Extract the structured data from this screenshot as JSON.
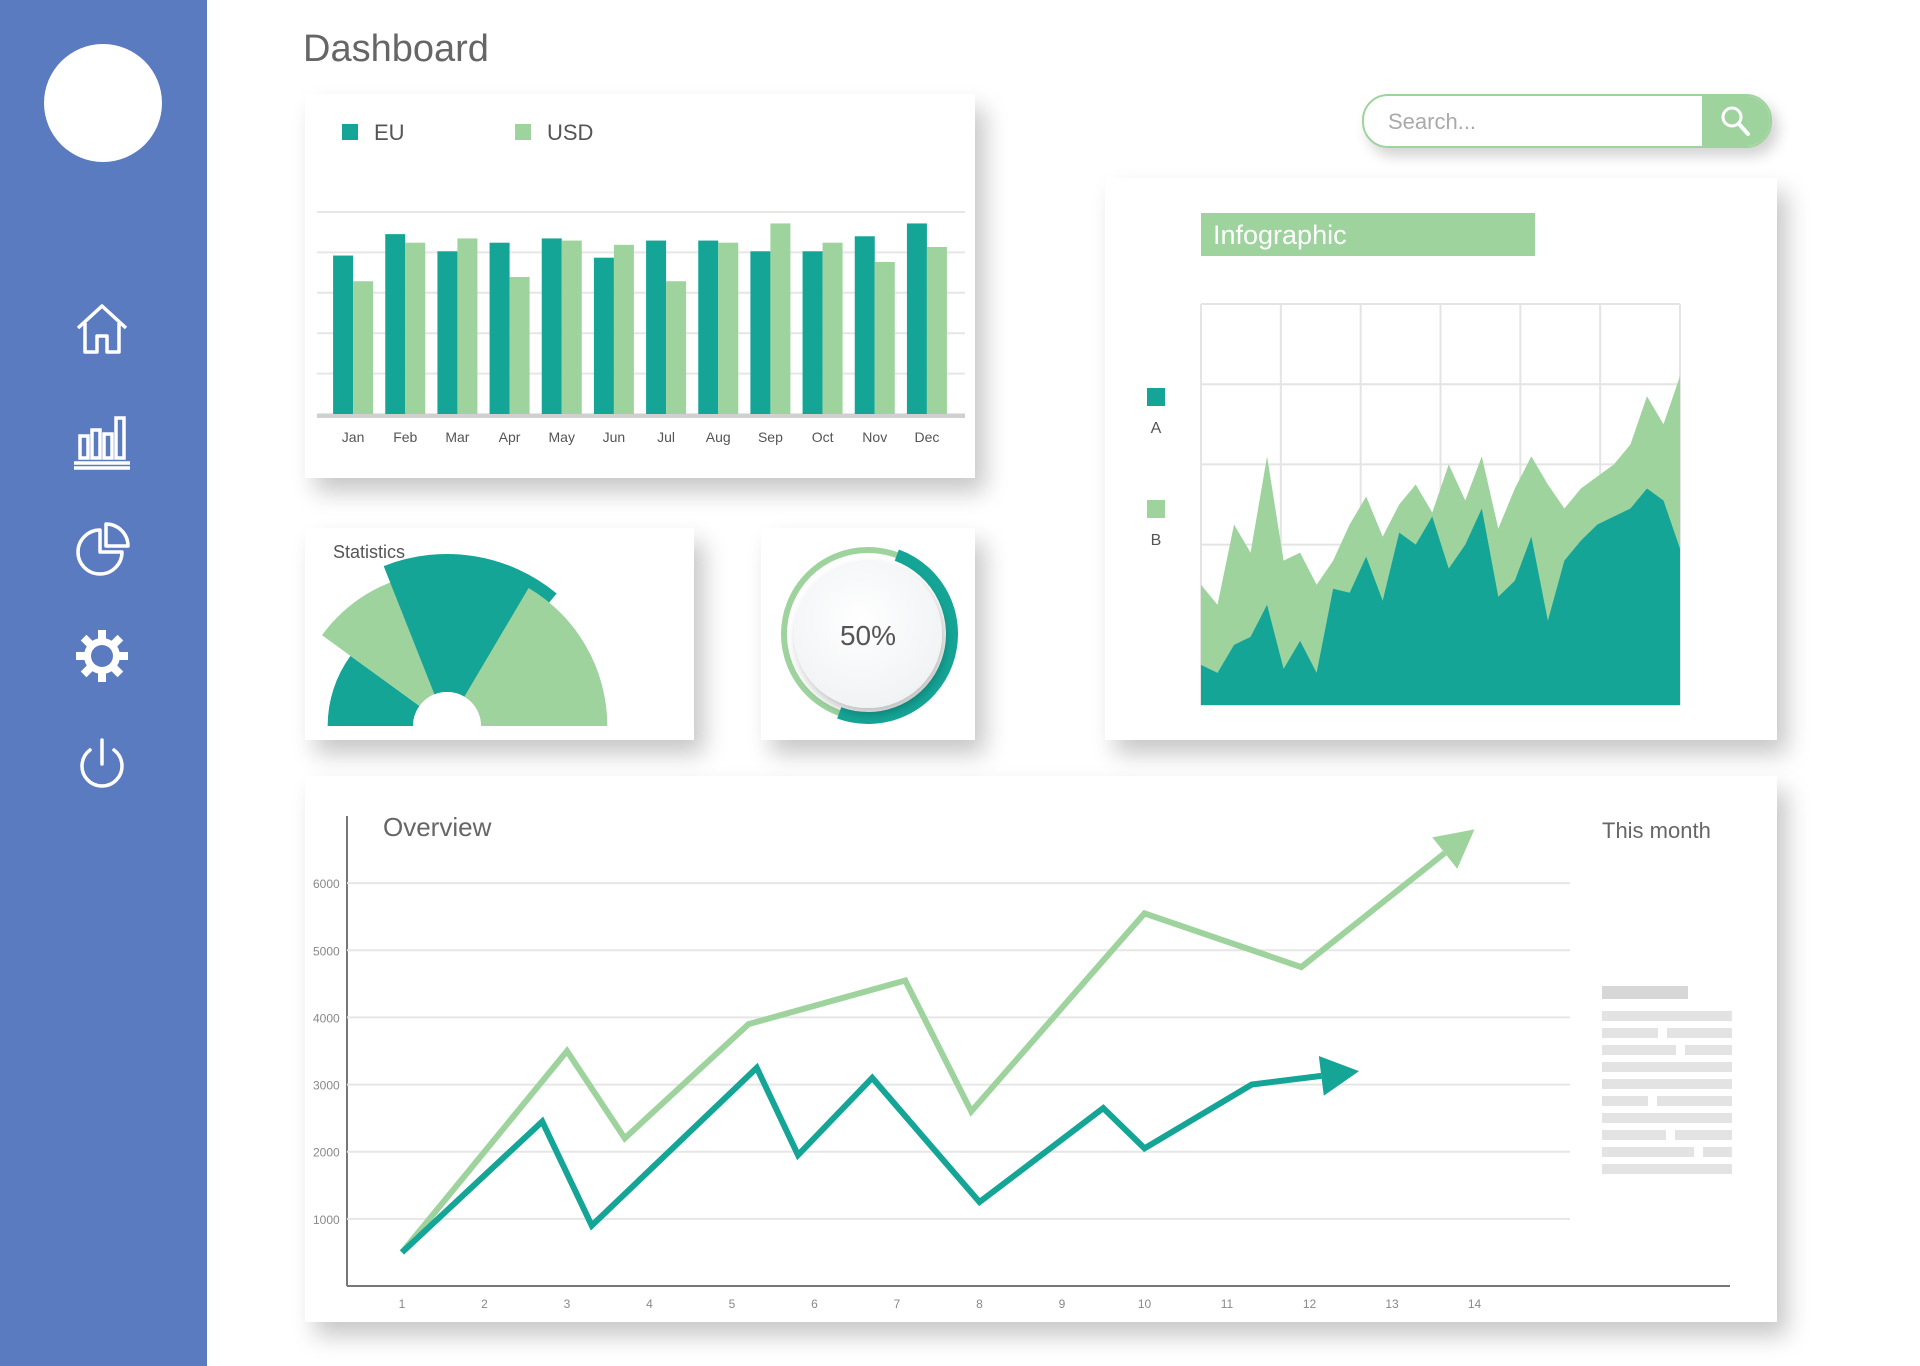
{
  "page": {
    "title": "Dashboard"
  },
  "sidebar": {
    "logo": "sound-wave-logo",
    "items": [
      {
        "icon": "home-icon"
      },
      {
        "icon": "bar-chart-icon"
      },
      {
        "icon": "pie-chart-icon"
      },
      {
        "icon": "gear-icon"
      },
      {
        "icon": "power-icon"
      }
    ]
  },
  "search": {
    "placeholder": "Search...",
    "icon": "search-icon"
  },
  "colors": {
    "sidebar": "#5b7bc0",
    "teal": "#14a596",
    "light_green": "#9ed39e",
    "white": "#ffffff"
  },
  "chart_data": [
    {
      "type": "bar",
      "categories": [
        "Jan",
        "Feb",
        "Mar",
        "Apr",
        "May",
        "Jun",
        "Jul",
        "Aug",
        "Sep",
        "Oct",
        "Nov",
        "Dec"
      ],
      "series": [
        {
          "name": "EU",
          "color": "#14a596",
          "values": [
            7.4,
            8.4,
            7.6,
            8.0,
            8.2,
            7.3,
            8.1,
            8.1,
            7.6,
            7.6,
            8.3,
            8.9
          ]
        },
        {
          "name": "USD",
          "color": "#9ed39e",
          "values": [
            6.2,
            8.0,
            8.2,
            6.4,
            8.1,
            7.9,
            6.2,
            8.0,
            8.9,
            8.0,
            7.1,
            7.8
          ]
        }
      ],
      "ylim": [
        0,
        10
      ],
      "legend_position": "top-left",
      "grid": true
    },
    {
      "type": "pie",
      "title": "Statistics",
      "variant": "semicircle-rose",
      "segments": [
        {
          "color": "#14a596",
          "value": 0.55
        },
        {
          "color": "#9ed39e",
          "value": 0.85
        },
        {
          "color": "#14a596",
          "value": 1.0
        },
        {
          "color": "#9ed39e",
          "value": 0.9
        }
      ]
    },
    {
      "type": "gauge",
      "value": 50,
      "label": "50%"
    },
    {
      "type": "area",
      "title": "Infographic",
      "x": [
        0,
        1,
        2,
        3,
        4,
        5,
        6,
        7,
        8,
        9,
        10,
        11,
        12,
        13,
        14,
        15,
        16,
        17,
        18,
        19,
        20,
        21,
        22,
        23,
        24,
        25,
        26,
        27,
        28,
        29
      ],
      "series": [
        {
          "name": "B",
          "color": "#9ed39e",
          "values": [
            3.0,
            2.5,
            4.5,
            3.8,
            6.2,
            3.6,
            3.8,
            3.0,
            3.6,
            4.5,
            5.2,
            4.2,
            5.0,
            5.5,
            4.8,
            6.0,
            5.1,
            6.2,
            4.4,
            5.4,
            6.2,
            5.5,
            4.9,
            5.4,
            5.7,
            6.0,
            6.5,
            7.7,
            7.0,
            8.2
          ]
        },
        {
          "name": "A",
          "color": "#14a596",
          "values": [
            1.0,
            0.8,
            1.5,
            1.7,
            2.5,
            0.9,
            1.6,
            0.8,
            2.9,
            2.8,
            3.7,
            2.6,
            4.3,
            4.0,
            4.7,
            3.4,
            4.0,
            4.9,
            2.7,
            3.1,
            4.2,
            2.1,
            3.6,
            4.1,
            4.5,
            4.7,
            4.9,
            5.4,
            5.1,
            3.9
          ]
        }
      ],
      "legend_position": "left",
      "grid": true,
      "ylim": [
        0,
        10
      ]
    },
    {
      "type": "line",
      "title": "Overview",
      "x": [
        1,
        2,
        3,
        4,
        5,
        6,
        7,
        8,
        9,
        10,
        11,
        12,
        13,
        14
      ],
      "x_ticks": [
        "1",
        "2",
        "3",
        "4",
        "5",
        "6",
        "7",
        "8",
        "9",
        "10",
        "11",
        "12",
        "13",
        "14"
      ],
      "y_ticks": [
        "1000",
        "2000",
        "3000",
        "4000",
        "5000",
        "6000"
      ],
      "ylim": [
        0,
        7000
      ],
      "series": [
        {
          "color": "#9ed39e",
          "points": [
            [
              1,
              500
            ],
            [
              3.0,
              3500
            ],
            [
              3.7,
              2200
            ],
            [
              5.2,
              3900
            ],
            [
              7.1,
              4550
            ],
            [
              7.9,
              2600
            ],
            [
              10.0,
              5550
            ],
            [
              11.9,
              4750
            ],
            [
              14.0,
              6800
            ]
          ]
        },
        {
          "color": "#14a596",
          "points": [
            [
              1,
              500
            ],
            [
              2.7,
              2450
            ],
            [
              3.3,
              900
            ],
            [
              5.3,
              3250
            ],
            [
              5.8,
              1950
            ],
            [
              6.7,
              3100
            ],
            [
              8.0,
              1250
            ],
            [
              9.5,
              2650
            ],
            [
              10.0,
              2050
            ],
            [
              11.3,
              3000
            ],
            [
              12.6,
              3200
            ]
          ]
        }
      ],
      "grid": true
    }
  ],
  "overview_side": {
    "label": "This month"
  }
}
